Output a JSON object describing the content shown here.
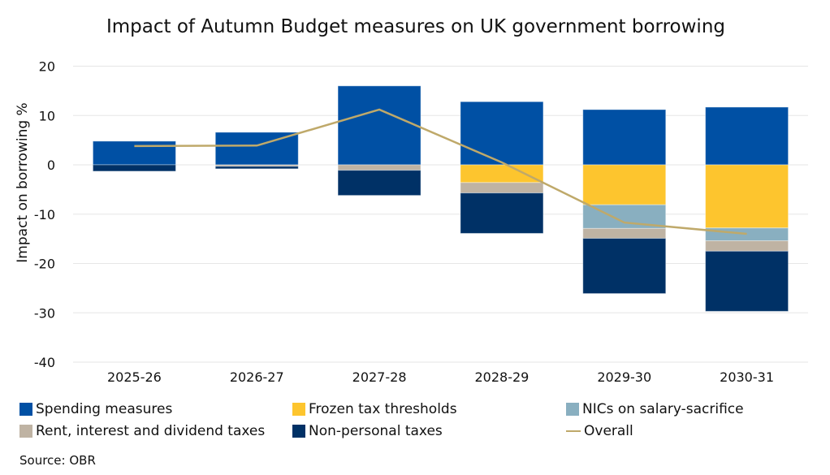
{
  "chart_data": {
    "type": "bar",
    "title": "Impact of Autumn Budget measures on UK government borrowing",
    "ylabel": "Impact on borrowing %",
    "xlabel": "",
    "ylim": [
      -40,
      20
    ],
    "yticks": [
      20,
      10,
      0,
      -10,
      -20,
      -30,
      -40
    ],
    "grid": true,
    "stacked": true,
    "legend_placement": "bottom",
    "categories": [
      "2025-26",
      "2026-27",
      "2027-28",
      "2028-29",
      "2029-30",
      "2030-31"
    ],
    "series": [
      {
        "name": "Spending measures",
        "color": "#0050a4",
        "values": [
          4.8,
          6.6,
          16.0,
          12.8,
          11.2,
          11.7
        ]
      },
      {
        "name": "Frozen tax thresholds",
        "color": "#fdc52e",
        "values": [
          0,
          0,
          0,
          -3.6,
          -8.1,
          -12.8
        ]
      },
      {
        "name": "NICs on salary-sacrifice",
        "color": "#89afc0",
        "values": [
          0,
          0,
          0,
          0,
          -4.8,
          -2.6
        ]
      },
      {
        "name": "Rent, interest and dividend taxes",
        "color": "#bfb3a3",
        "values": [
          0,
          -0.3,
          -1.1,
          -2.1,
          -2.0,
          -2.1
        ]
      },
      {
        "name": "Non-personal taxes",
        "color": "#003166",
        "values": [
          -1.3,
          -0.5,
          -5.1,
          -8.2,
          -11.2,
          -12.2
        ]
      }
    ],
    "line": {
      "name": "Overall",
      "color": "#bfa96a",
      "values": [
        3.8,
        3.9,
        11.2,
        0.5,
        -11.7,
        -14.0
      ]
    }
  },
  "source": "Source: OBR"
}
